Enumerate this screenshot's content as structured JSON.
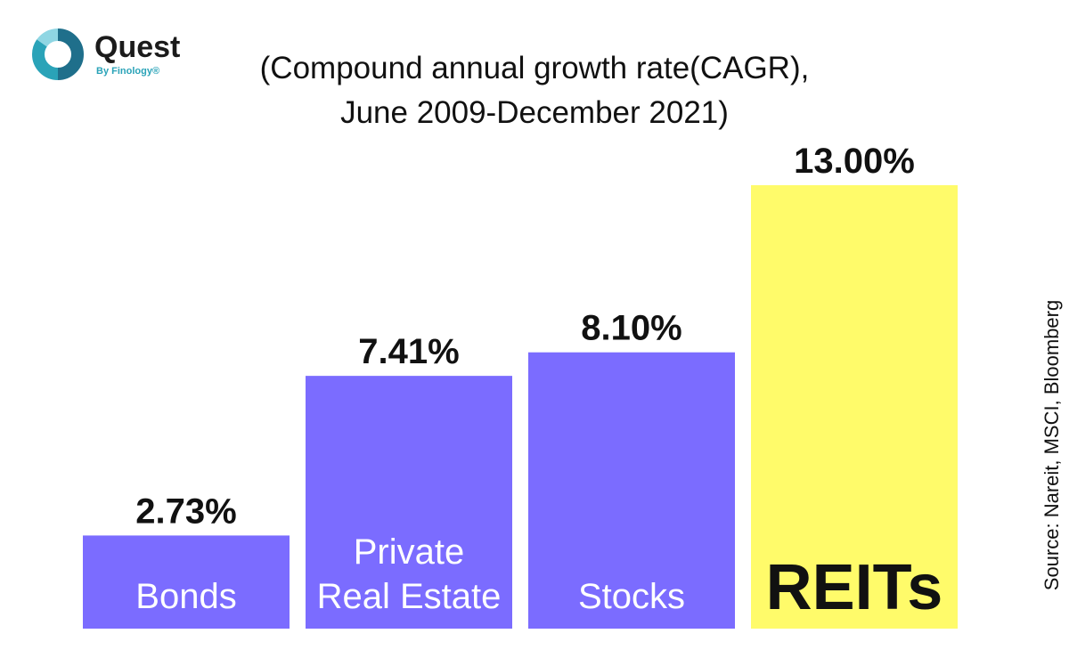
{
  "brand": {
    "name": "Quest",
    "sub": "By Finology®",
    "colors": {
      "ring_dark": "#1f6f8b",
      "ring_mid": "#2aa3b8",
      "ring_light": "#8fd6e3"
    }
  },
  "title_lines": [
    "(Compound annual growth rate(CAGR),",
    "June 2009-December 2021)"
  ],
  "source": "Source: Nareit, MSCI, Bloomberg",
  "chart_data": {
    "type": "bar",
    "title": "(Compound annual growth rate(CAGR), June 2009-December 2021)",
    "categories": [
      {
        "lines": [
          "Bonds"
        ]
      },
      {
        "lines": [
          "Private",
          "Real Estate"
        ]
      },
      {
        "lines": [
          "Stocks"
        ]
      },
      {
        "lines": [
          "REITs"
        ]
      }
    ],
    "values": [
      2.73,
      7.41,
      8.1,
      13.0
    ],
    "value_labels": [
      "2.73%",
      "7.41%",
      "8.10%",
      "13.00%"
    ],
    "ylim": [
      0,
      14
    ],
    "xlabel": "",
    "ylabel": "",
    "grid": false,
    "colors": [
      "#7b6cff",
      "#7b6cff",
      "#7b6cff",
      "#fffb6a"
    ],
    "label_colors": [
      "#ffffff",
      "#ffffff",
      "#ffffff",
      "#111111"
    ]
  }
}
